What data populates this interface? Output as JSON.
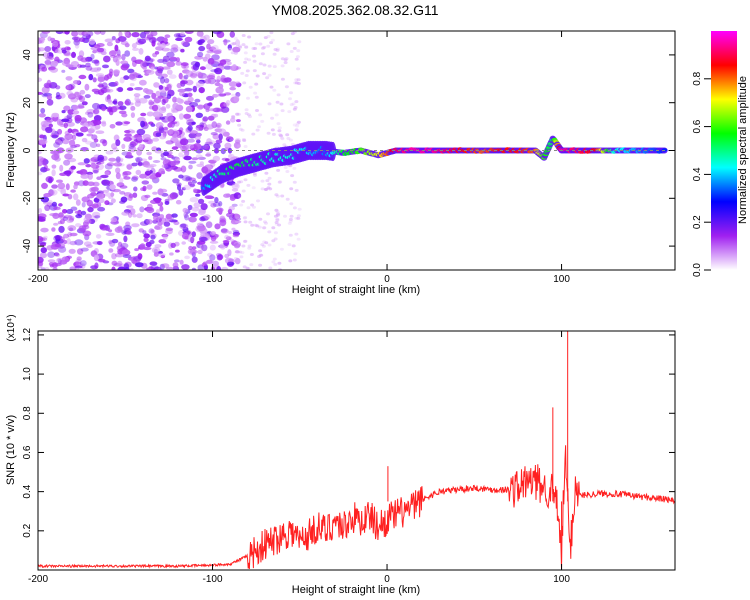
{
  "title": "YM08.2025.362.08.32.G11",
  "chart_data": [
    {
      "type": "heatmap",
      "xlabel": "Height of straight line (km)",
      "ylabel": "Frequency (Hz)",
      "xlim": [
        -200,
        165
      ],
      "ylim": [
        -50,
        50
      ],
      "xticks": [
        -200,
        -100,
        0,
        100
      ],
      "yticks": [
        -40,
        -20,
        0,
        20,
        40
      ],
      "colorbar": {
        "label": "Normalized spectral amplitude",
        "range": [
          0,
          1
        ],
        "ticks": [
          "0.0",
          "0.2",
          "0.4",
          "0.6",
          "0.8"
        ],
        "colors": [
          "#ffffff",
          "#a020f0",
          "#0000ff",
          "#00ffff",
          "#00ff00",
          "#ffff00",
          "#ff0000",
          "#ff00ff"
        ]
      },
      "ridge": {
        "x": [
          -105,
          -95,
          -85,
          -75,
          -65,
          -55,
          -45,
          -35,
          -25,
          -15,
          -5,
          5,
          15,
          25,
          35,
          45,
          55,
          65,
          75,
          85,
          90,
          95,
          100,
          110,
          120,
          130,
          140,
          150,
          160
        ],
        "y": [
          -15,
          -10,
          -7,
          -5,
          -3,
          -2,
          0,
          0,
          -1,
          0,
          -2,
          0,
          0,
          0,
          0,
          0,
          0,
          0,
          0,
          0,
          -3,
          5,
          0,
          0,
          0,
          0,
          0,
          0,
          0
        ],
        "amplitude": [
          0.35,
          0.5,
          0.55,
          0.5,
          0.45,
          0.45,
          0.4,
          0.35,
          0.55,
          0.6,
          0.7,
          0.9,
          0.95,
          0.95,
          0.9,
          0.85,
          0.8,
          0.85,
          0.85,
          0.8,
          0.6,
          0.5,
          0.95,
          0.9,
          0.85,
          0.45,
          0.4,
          0.35,
          0.3
        ]
      }
    },
    {
      "type": "line",
      "xlabel": "Height of straight line (km)",
      "ylabel": "SNR (10 * v/v)",
      "scale_label": "(x10⁴)",
      "xlim": [
        -200,
        165
      ],
      "ylim": [
        0,
        1.22
      ],
      "xticks": [
        -200,
        -100,
        0,
        100
      ],
      "yticks": [
        0.2,
        0.4,
        0.6,
        0.8,
        1.0,
        1.2
      ],
      "series": [
        {
          "color": "#ff2020",
          "x": [
            -200,
            -180,
            -160,
            -140,
            -120,
            -100,
            -90,
            -85,
            -80,
            -75,
            -70,
            -65,
            -60,
            -55,
            -50,
            -45,
            -40,
            -35,
            -30,
            -25,
            -20,
            -15,
            -10,
            -5,
            0,
            5,
            10,
            15,
            20,
            25,
            30,
            40,
            50,
            60,
            70,
            75,
            80,
            85,
            90,
            95,
            98,
            100,
            102,
            105,
            108,
            110,
            120,
            130,
            140,
            150,
            160,
            165
          ],
          "y": [
            0.02,
            0.02,
            0.02,
            0.02,
            0.02,
            0.025,
            0.03,
            0.05,
            0.07,
            0.1,
            0.13,
            0.15,
            0.18,
            0.2,
            0.15,
            0.18,
            0.22,
            0.2,
            0.25,
            0.22,
            0.27,
            0.25,
            0.28,
            0.22,
            0.26,
            0.28,
            0.3,
            0.32,
            0.36,
            0.38,
            0.4,
            0.41,
            0.42,
            0.41,
            0.41,
            0.42,
            0.45,
            0.45,
            0.42,
            0.4,
            0.3,
            0.05,
            0.6,
            0.1,
            0.45,
            0.38,
            0.39,
            0.39,
            0.38,
            0.37,
            0.36,
            0.35
          ]
        }
      ],
      "spikes": [
        {
          "x": 0.5,
          "y": 0.53
        },
        {
          "x": 95,
          "y": 0.83
        },
        {
          "x": 100,
          "y": 0.04
        },
        {
          "x": 103.5,
          "y": 1.22
        }
      ]
    }
  ]
}
